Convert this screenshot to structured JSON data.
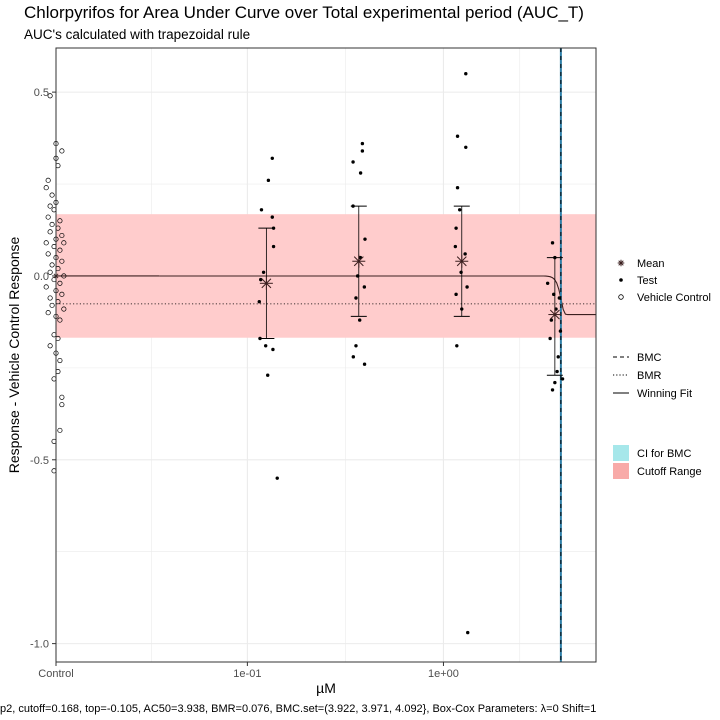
{
  "chart_data": {
    "type": "scatter",
    "title": "Chlorpyrifos for Area Under Curve over Total experimental period (AUC_T)",
    "subtitle": "AUC's calculated with trapezoidal rule",
    "xlabel": "µM",
    "ylabel": "Response - Vehicle Control Response",
    "x_ticks": [
      "Control",
      "1e-01",
      "1e+00"
    ],
    "y_ticks": [
      {
        "value": 0.5,
        "label": "0.5"
      },
      {
        "value": 0.0,
        "label": "0.0"
      },
      {
        "value": -0.5,
        "label": "-0.5"
      },
      {
        "value": -1.0,
        "label": "-1.0"
      }
    ],
    "ylim": [
      -1.05,
      0.62
    ],
    "x_scale": "log10",
    "xlim_log10": [
      -1.976,
      0.778
    ],
    "control_log10": -1.976,
    "grid": true,
    "cutoff_range": [
      -0.168,
      0.168
    ],
    "bmr": -0.076,
    "bmc": 3.971,
    "bmc_ci": [
      3.922,
      4.092
    ],
    "fit": {
      "top": -0.105,
      "ac50": 3.938,
      "model": "exp4"
    },
    "vehicle_control": [
      {
        "x_jitter": -0.03,
        "y": 0.49
      },
      {
        "x_jitter": 0.0,
        "y": 0.36
      },
      {
        "x_jitter": 0.03,
        "y": 0.34
      },
      {
        "x_jitter": 0.0,
        "y": 0.32
      },
      {
        "x_jitter": 0.01,
        "y": 0.3
      },
      {
        "x_jitter": -0.04,
        "y": 0.26
      },
      {
        "x_jitter": -0.05,
        "y": 0.24
      },
      {
        "x_jitter": -0.02,
        "y": 0.22
      },
      {
        "x_jitter": 0.0,
        "y": 0.2
      },
      {
        "x_jitter": -0.03,
        "y": 0.19
      },
      {
        "x_jitter": -0.01,
        "y": 0.18
      },
      {
        "x_jitter": -0.04,
        "y": 0.16
      },
      {
        "x_jitter": 0.02,
        "y": 0.15
      },
      {
        "x_jitter": -0.02,
        "y": 0.14
      },
      {
        "x_jitter": 0.01,
        "y": 0.13
      },
      {
        "x_jitter": -0.03,
        "y": 0.12
      },
      {
        "x_jitter": 0.03,
        "y": 0.11
      },
      {
        "x_jitter": 0.0,
        "y": 0.1
      },
      {
        "x_jitter": -0.05,
        "y": 0.09
      },
      {
        "x_jitter": 0.04,
        "y": 0.09
      },
      {
        "x_jitter": -0.01,
        "y": 0.08
      },
      {
        "x_jitter": 0.02,
        "y": 0.07
      },
      {
        "x_jitter": -0.04,
        "y": 0.06
      },
      {
        "x_jitter": 0.0,
        "y": 0.05
      },
      {
        "x_jitter": 0.03,
        "y": 0.04
      },
      {
        "x_jitter": -0.02,
        "y": 0.03
      },
      {
        "x_jitter": 0.01,
        "y": 0.02
      },
      {
        "x_jitter": -0.03,
        "y": 0.01
      },
      {
        "x_jitter": 0.04,
        "y": 0.0
      },
      {
        "x_jitter": -0.01,
        "y": -0.01
      },
      {
        "x_jitter": 0.02,
        "y": -0.02
      },
      {
        "x_jitter": -0.05,
        "y": -0.03
      },
      {
        "x_jitter": 0.0,
        "y": -0.04
      },
      {
        "x_jitter": 0.03,
        "y": -0.05
      },
      {
        "x_jitter": -0.03,
        "y": -0.06
      },
      {
        "x_jitter": 0.01,
        "y": -0.07
      },
      {
        "x_jitter": -0.02,
        "y": -0.08
      },
      {
        "x_jitter": 0.04,
        "y": -0.09
      },
      {
        "x_jitter": -0.04,
        "y": -0.1
      },
      {
        "x_jitter": 0.0,
        "y": -0.11
      },
      {
        "x_jitter": 0.02,
        "y": -0.12
      },
      {
        "x_jitter": -0.01,
        "y": -0.16
      },
      {
        "x_jitter": 0.01,
        "y": -0.17
      },
      {
        "x_jitter": -0.03,
        "y": -0.19
      },
      {
        "x_jitter": 0.0,
        "y": -0.21
      },
      {
        "x_jitter": 0.02,
        "y": -0.23
      },
      {
        "x_jitter": 0.01,
        "y": -0.26
      },
      {
        "x_jitter": -0.01,
        "y": -0.28
      },
      {
        "x_jitter": 0.03,
        "y": -0.33
      },
      {
        "x_jitter": 0.03,
        "y": -0.35
      },
      {
        "x_jitter": 0.02,
        "y": -0.42
      },
      {
        "x_jitter": -0.01,
        "y": -0.45
      },
      {
        "x_jitter": -0.01,
        "y": -0.53
      }
    ],
    "test_points": [
      {
        "x": 0.118,
        "y": 0.18
      },
      {
        "x": 0.134,
        "y": 0.16
      },
      {
        "x": 0.136,
        "y": 0.13
      },
      {
        "x": 0.136,
        "y": 0.08
      },
      {
        "x": 0.117,
        "y": -0.01
      },
      {
        "x": 0.115,
        "y": -0.07
      },
      {
        "x": 0.134,
        "y": 0.32
      },
      {
        "x": 0.128,
        "y": 0.26
      },
      {
        "x": 0.116,
        "y": -0.17
      },
      {
        "x": 0.124,
        "y": -0.19
      },
      {
        "x": 0.135,
        "y": -0.2
      },
      {
        "x": 0.127,
        "y": -0.27
      },
      {
        "x": 0.142,
        "y": -0.55
      },
      {
        "x": 0.121,
        "y": 0.01
      },
      {
        "x": 0.386,
        "y": 0.34
      },
      {
        "x": 0.346,
        "y": 0.31
      },
      {
        "x": 0.378,
        "y": 0.28
      },
      {
        "x": 0.346,
        "y": 0.19
      },
      {
        "x": 0.386,
        "y": 0.36
      },
      {
        "x": 0.398,
        "y": 0.1
      },
      {
        "x": 0.377,
        "y": 0.05
      },
      {
        "x": 0.358,
        "y": -0.06
      },
      {
        "x": 0.395,
        "y": -0.03
      },
      {
        "x": 0.374,
        "y": -0.12
      },
      {
        "x": 0.358,
        "y": -0.19
      },
      {
        "x": 0.347,
        "y": -0.22
      },
      {
        "x": 0.396,
        "y": -0.24
      },
      {
        "x": 0.365,
        "y": 0.0
      },
      {
        "x": 1.18,
        "y": 0.38
      },
      {
        "x": 1.3,
        "y": 0.55
      },
      {
        "x": 1.3,
        "y": 0.35
      },
      {
        "x": 1.18,
        "y": 0.24
      },
      {
        "x": 1.16,
        "y": 0.13
      },
      {
        "x": 1.21,
        "y": 0.18
      },
      {
        "x": 1.15,
        "y": 0.08
      },
      {
        "x": 1.29,
        "y": 0.06
      },
      {
        "x": 1.23,
        "y": 0.01
      },
      {
        "x": 1.32,
        "y": -0.03
      },
      {
        "x": 1.16,
        "y": -0.05
      },
      {
        "x": 1.24,
        "y": -0.09
      },
      {
        "x": 1.17,
        "y": -0.19
      },
      {
        "x": 1.33,
        "y": -0.97
      },
      {
        "x": 3.6,
        "y": 0.09
      },
      {
        "x": 3.7,
        "y": 0.05
      },
      {
        "x": 3.4,
        "y": -0.02
      },
      {
        "x": 3.65,
        "y": -0.05
      },
      {
        "x": 3.9,
        "y": -0.06
      },
      {
        "x": 3.75,
        "y": -0.09
      },
      {
        "x": 3.55,
        "y": -0.12
      },
      {
        "x": 3.95,
        "y": -0.15
      },
      {
        "x": 3.5,
        "y": -0.17
      },
      {
        "x": 3.85,
        "y": -0.22
      },
      {
        "x": 3.8,
        "y": -0.26
      },
      {
        "x": 3.7,
        "y": -0.29
      },
      {
        "x": 4.05,
        "y": -0.28
      },
      {
        "x": 3.6,
        "y": -0.31
      }
    ],
    "summary": [
      {
        "x": 0.125,
        "mean": -0.02,
        "lo": -0.17,
        "hi": 0.13
      },
      {
        "x": 0.37,
        "mean": 0.04,
        "lo": -0.11,
        "hi": 0.19
      },
      {
        "x": 1.24,
        "mean": 0.04,
        "lo": -0.11,
        "hi": 0.19
      },
      {
        "x": 3.7,
        "mean": -0.105,
        "lo": -0.27,
        "hi": 0.05
      }
    ],
    "control_mean": 0.0,
    "legend": {
      "points": [
        {
          "symbol": "asterisk",
          "label": "Mean"
        },
        {
          "symbol": "dot",
          "label": "Test"
        },
        {
          "symbol": "circle",
          "label": "Vehicle Control"
        }
      ],
      "lines": [
        {
          "style": "dashed",
          "label": "BMC"
        },
        {
          "style": "dotted",
          "label": "BMR"
        },
        {
          "style": "solid",
          "label": "Winning Fit"
        }
      ],
      "fills": [
        {
          "color": "#a6e7ea",
          "label": "CI for BMC"
        },
        {
          "color": "#f8aaa8",
          "label": "Cutoff Range"
        }
      ]
    },
    "colors": {
      "cutoff_fill": "#ffcccc",
      "bmc_line": "#2e7fa8",
      "bmc_dash": "#000000",
      "fit_line": "#3b1f1f",
      "grid": "#ebebeb",
      "panel_border": "#333333"
    },
    "caption": "p2, cutoff=0.168, top=-0.105, AC50=3.938, BMR=0.076, BMC.set=(3.922, 3.971, 4.092}, Box-Cox Parameters: λ=0 Shift=1"
  }
}
